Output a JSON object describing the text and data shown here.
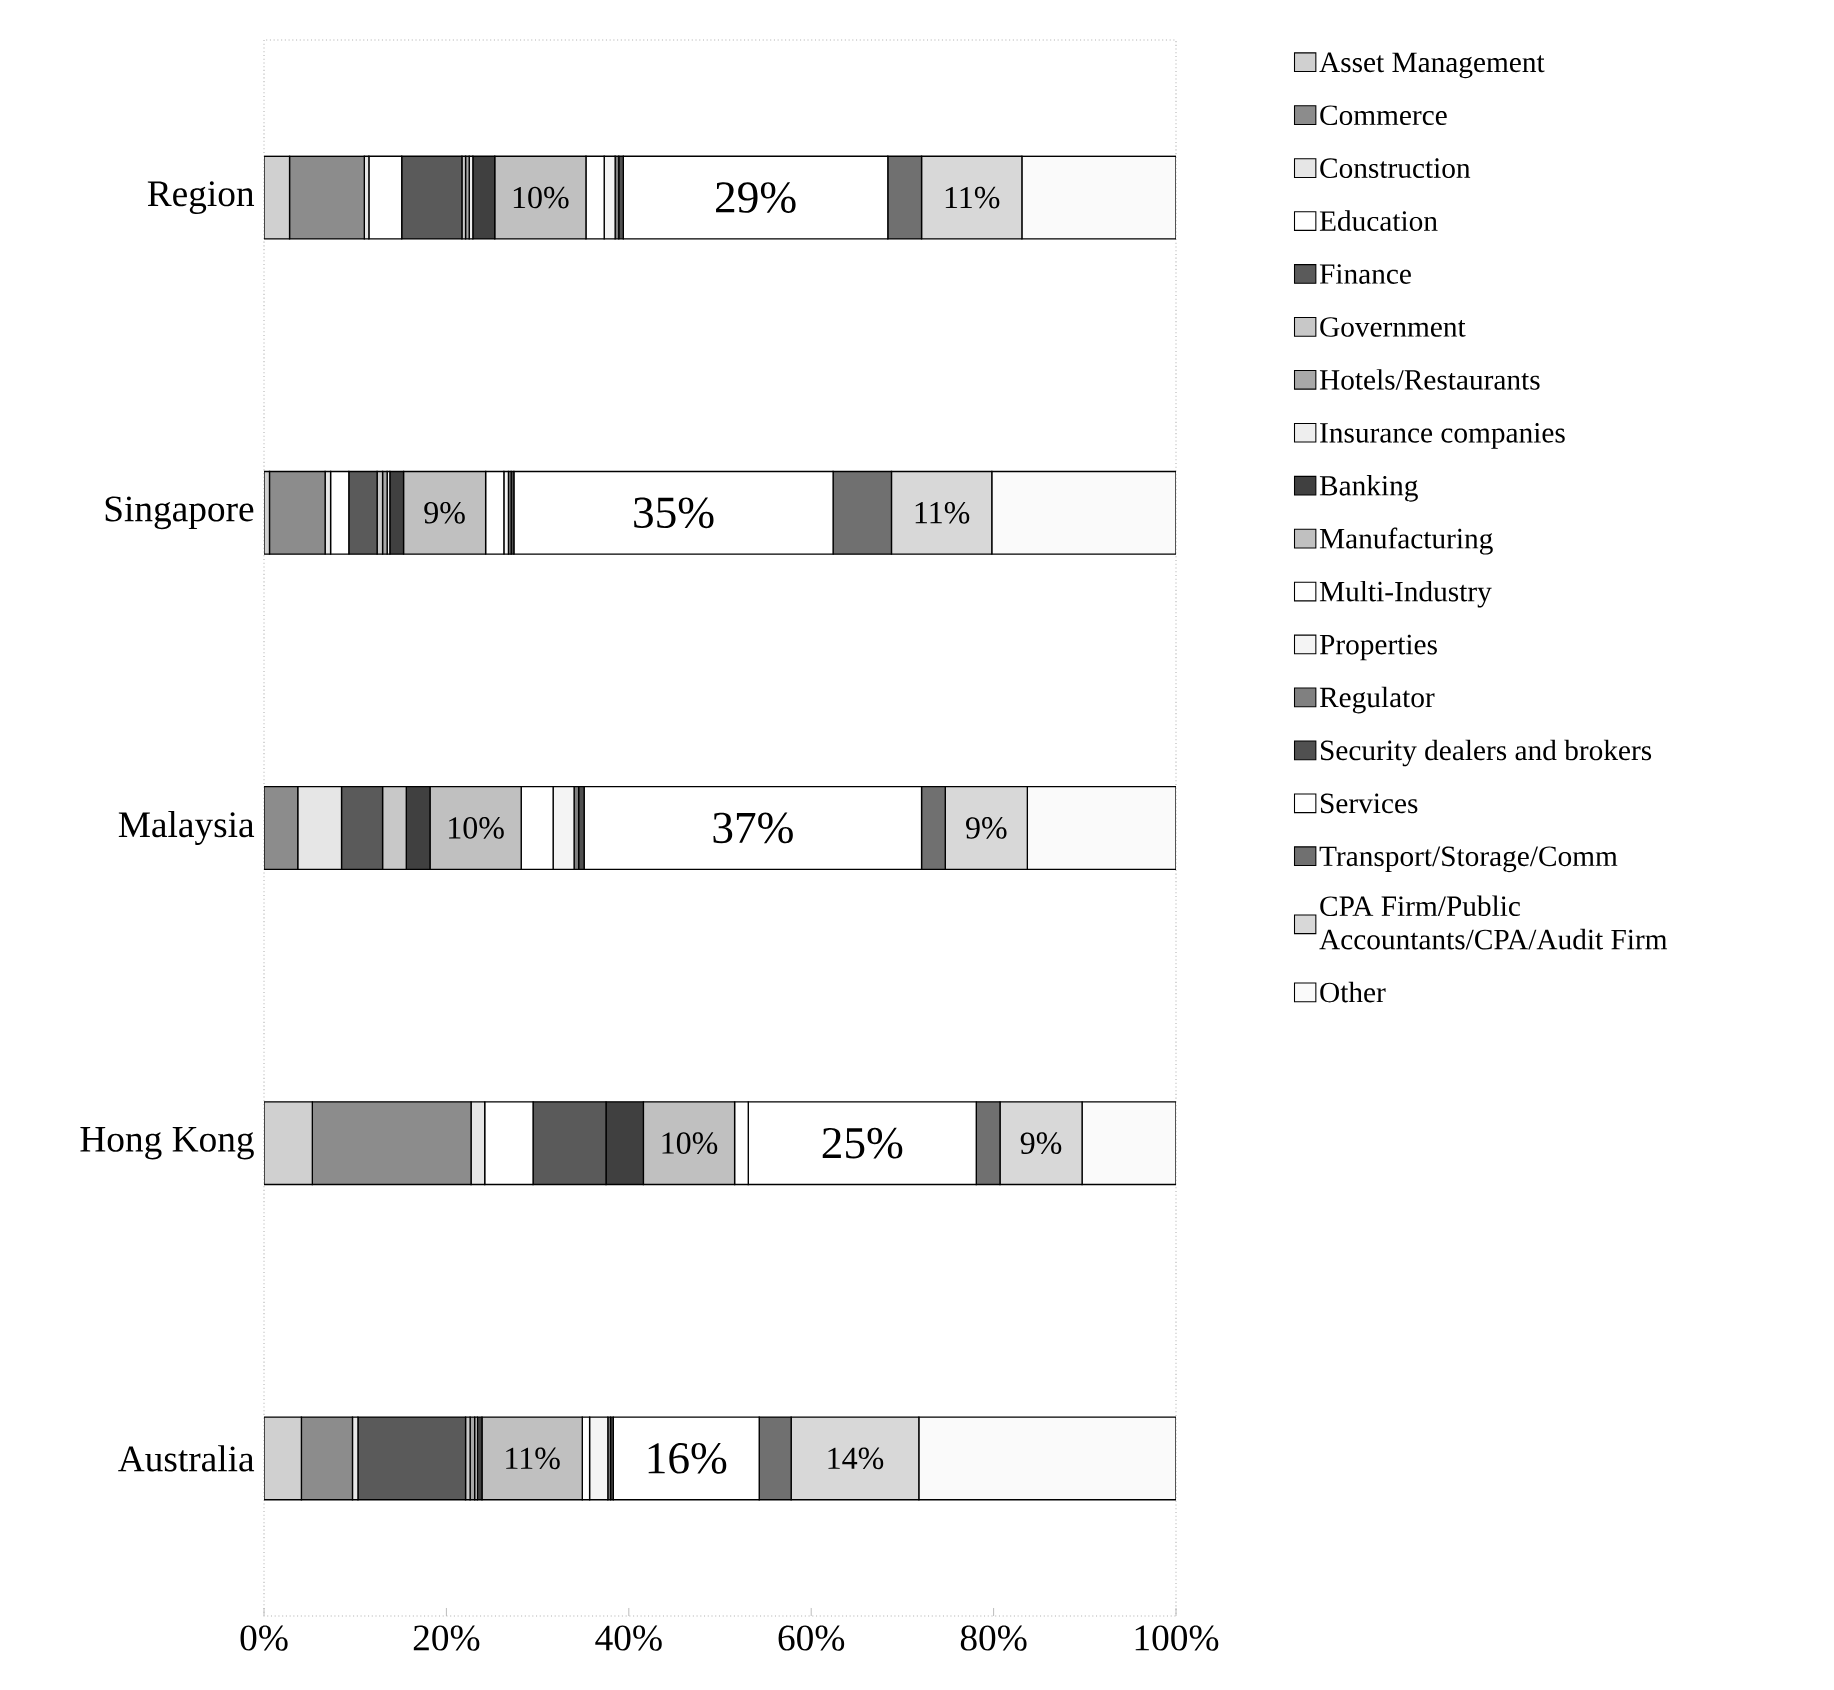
{
  "chart_data": {
    "type": "bar",
    "orientation": "horizontal",
    "stacked": true,
    "categories": [
      "Region",
      "Singapore",
      "Malaysia",
      "Hong Kong",
      "Australia"
    ],
    "xlim": [
      0,
      100
    ],
    "xticks": [
      {
        "value": 0,
        "label": "0%"
      },
      {
        "value": 20,
        "label": "20%"
      },
      {
        "value": 40,
        "label": "40%"
      },
      {
        "value": 60,
        "label": "60%"
      },
      {
        "value": 80,
        "label": "80%"
      },
      {
        "value": 100,
        "label": "100%"
      }
    ],
    "legend": "right",
    "series": [
      {
        "name": "Asset Management",
        "color": "#d0d0d0",
        "values": [
          2.8,
          0.6,
          0,
          5.3,
          4.1
        ]
      },
      {
        "name": "Commerce",
        "color": "#8c8c8c",
        "values": [
          8.2,
          6.1,
          3.7,
          17.4,
          5.6
        ]
      },
      {
        "name": "Construction",
        "color": "#e6e6e6",
        "values": [
          0.5,
          0.6,
          4.8,
          1.5,
          0.6
        ]
      },
      {
        "name": "Education",
        "color": "#ffffff",
        "values": [
          3.6,
          2.0,
          0,
          5.3,
          0
        ]
      },
      {
        "name": "Finance",
        "color": "#5a5a5a",
        "values": [
          6.6,
          3.1,
          4.5,
          8,
          11.8
        ]
      },
      {
        "name": "Government",
        "color": "#c8c8c8",
        "values": [
          0.4,
          0.6,
          2.6,
          0,
          0.5
        ]
      },
      {
        "name": "Hotels/Restaurants",
        "color": "#a8a8a8",
        "values": [
          0.4,
          0.5,
          0,
          0,
          0.5
        ]
      },
      {
        "name": "Insurance companies",
        "color": "#eeeeee",
        "values": [
          0.4,
          0.3,
          0,
          0,
          0.3
        ]
      },
      {
        "name": "Banking",
        "color": "#404040",
        "values": [
          2.4,
          1.5,
          2.6,
          4.1,
          0.5
        ]
      },
      {
        "name": "Manufacturing",
        "color": "#c0c0c0",
        "values": [
          10,
          9,
          10,
          10,
          11
        ],
        "value_labels": [
          "10%",
          "9%",
          "10%",
          "10%",
          "11%"
        ]
      },
      {
        "name": "Multi-Industry",
        "color": "#ffffff",
        "values": [
          2.0,
          2.0,
          3.5,
          1.5,
          0.8
        ]
      },
      {
        "name": "Properties",
        "color": "#f4f4f4",
        "values": [
          1.2,
          0.5,
          2.3,
          0,
          2.0
        ]
      },
      {
        "name": "Regulator",
        "color": "#808080",
        "values": [
          0.4,
          0.3,
          0.5,
          0,
          0.3
        ]
      },
      {
        "name": "Security dealers and brokers",
        "color": "#505050",
        "values": [
          0.5,
          0.3,
          0.6,
          0,
          0.3
        ]
      },
      {
        "name": "Services",
        "color": "#ffffff",
        "values": [
          29,
          35,
          37,
          25,
          16
        ],
        "value_labels": [
          "29%",
          "35%",
          "37%",
          "25%",
          "16%"
        ]
      },
      {
        "name": "Transport/Storage/Comm",
        "color": "#707070",
        "values": [
          3.7,
          6.4,
          2.6,
          2.6,
          3.5
        ]
      },
      {
        "name": "CPA Firm/Public Accountants/CPA/Audit Firm",
        "color": "#d8d8d8",
        "values": [
          11,
          11,
          9,
          9,
          14
        ],
        "value_labels": [
          "11%",
          "11%",
          "9%",
          "9%",
          "14%"
        ]
      },
      {
        "name": "Other",
        "color": "#fafafa",
        "values": [
          16.9,
          20.2,
          16.3,
          10.3,
          28.2
        ]
      }
    ]
  }
}
